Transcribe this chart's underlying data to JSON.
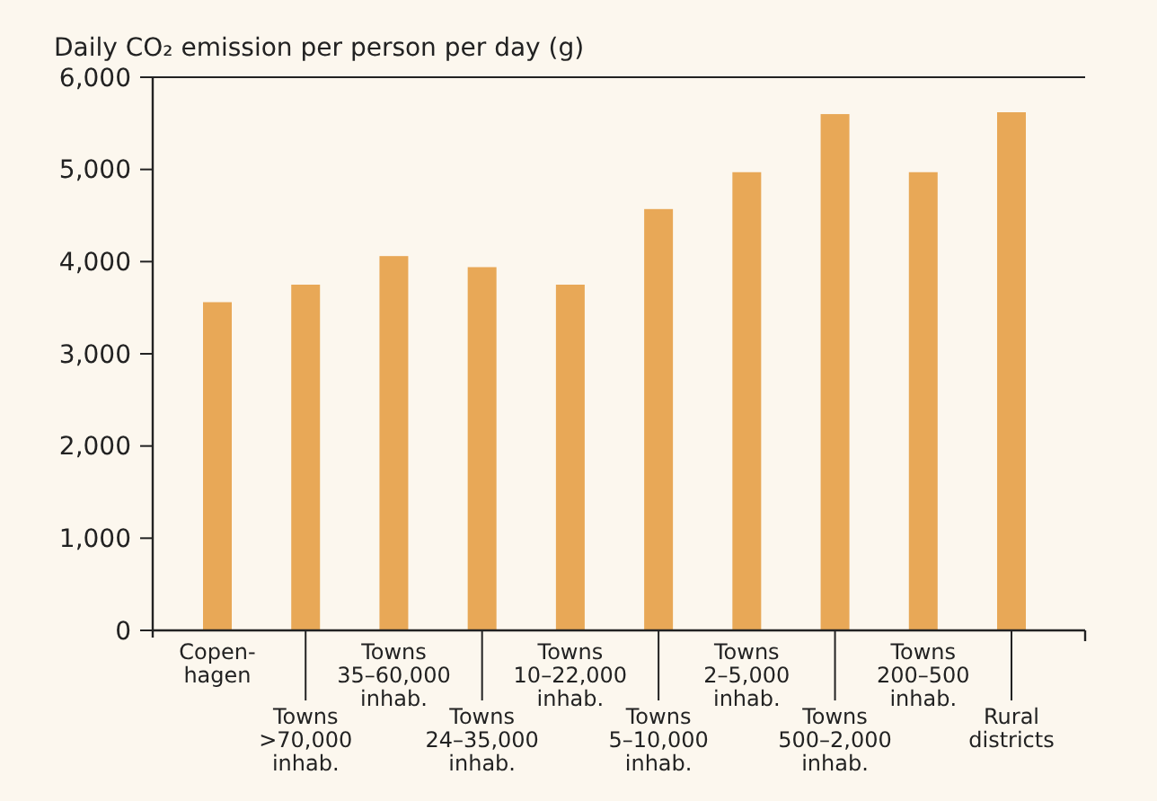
{
  "chart_data": {
    "type": "bar",
    "title": "Daily CO₂ emission per person per day (g)",
    "categories": [
      "Copen-\nhagen",
      "Towns\n>70,000\ninhab.",
      "Towns\n35–60,000\ninhab.",
      "Towns\n24–35,000\ninhab.",
      "Towns\n10–22,000\ninhab.",
      "Towns\n5–10,000\ninhab.",
      "Towns\n2–5,000\ninhab.",
      "Towns\n500–2,000\ninhab.",
      "Towns\n200–500\ninhab.",
      "Rural\ndistricts"
    ],
    "values": [
      3560,
      3750,
      4060,
      3940,
      3750,
      4570,
      4970,
      5600,
      4970,
      5620
    ],
    "color": "#e8a857",
    "ylim": [
      0,
      6000
    ],
    "yticks": [
      0,
      {
        "value": 1000,
        "label": "1,000"
      },
      {
        "value": 2000,
        "label": "2,000"
      },
      {
        "value": 3000,
        "label": "3,000"
      },
      {
        "value": 4000,
        "label": "4,000"
      },
      {
        "value": 5000,
        "label": "5,000"
      },
      {
        "value": 6000,
        "label": "6,000"
      }
    ],
    "grid": false
  }
}
